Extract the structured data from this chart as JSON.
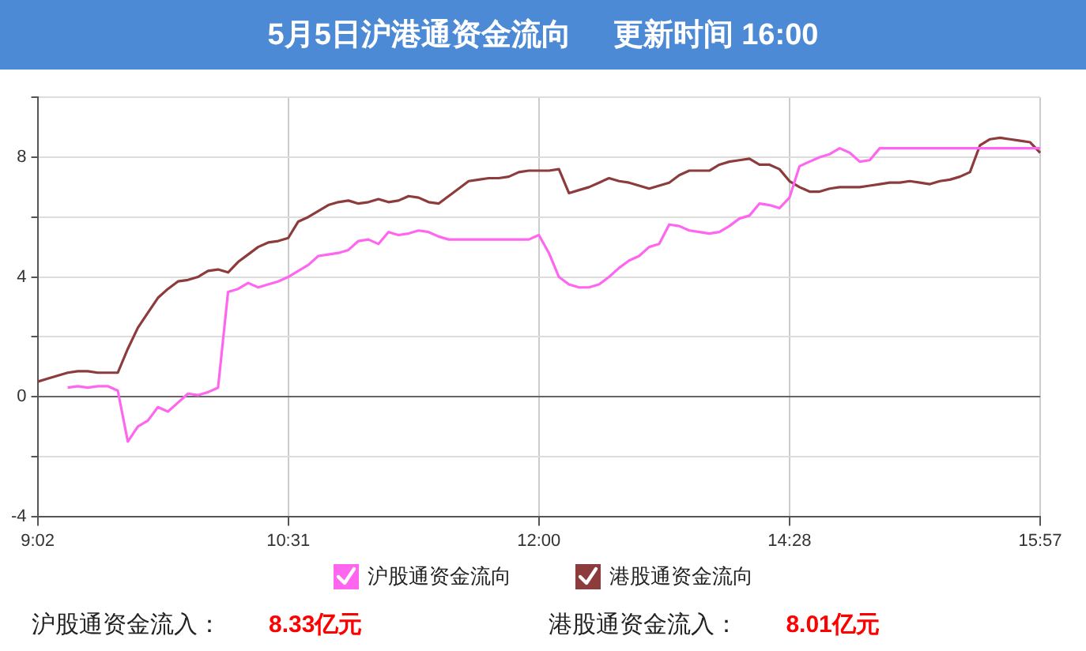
{
  "chart_data": {
    "type": "line",
    "title": "5月5日沪港通资金流向     更新时间 16:00",
    "categories": [
      "9:02",
      null,
      null,
      null,
      null,
      null,
      null,
      null,
      null,
      null,
      null,
      null,
      null,
      null,
      null,
      null,
      null,
      null,
      null,
      null,
      null,
      null,
      null,
      null,
      null,
      "10:31",
      null,
      null,
      null,
      null,
      null,
      null,
      null,
      null,
      null,
      null,
      null,
      null,
      null,
      null,
      null,
      null,
      null,
      null,
      null,
      null,
      null,
      null,
      null,
      null,
      "12:00",
      null,
      null,
      null,
      null,
      null,
      null,
      null,
      null,
      null,
      null,
      null,
      null,
      null,
      null,
      null,
      null,
      null,
      null,
      null,
      null,
      null,
      null,
      null,
      null,
      "14:28",
      null,
      null,
      null,
      null,
      null,
      null,
      null,
      null,
      null,
      null,
      null,
      null,
      null,
      null,
      null,
      null,
      null,
      null,
      null,
      null,
      null,
      null,
      null,
      null,
      "15:57"
    ],
    "series": [
      {
        "name": "沪股通资金流向",
        "color": "#ff66f0",
        "values": [
          null,
          null,
          null,
          0.3,
          0.35,
          0.3,
          0.35,
          0.35,
          0.2,
          -1.5,
          -1.0,
          -0.8,
          -0.35,
          -0.5,
          -0.2,
          0.1,
          0.05,
          0.15,
          0.3,
          3.5,
          3.6,
          3.8,
          3.65,
          3.75,
          3.85,
          4.0,
          4.2,
          4.4,
          4.7,
          4.75,
          4.8,
          4.9,
          5.2,
          5.25,
          5.1,
          5.5,
          5.4,
          5.45,
          5.55,
          5.5,
          5.35,
          5.25,
          5.25,
          5.25,
          5.25,
          5.25,
          5.25,
          5.25,
          5.25,
          5.25,
          5.4,
          4.8,
          4.0,
          3.75,
          3.65,
          3.65,
          3.75,
          4.0,
          4.3,
          4.55,
          4.7,
          5.0,
          5.1,
          5.75,
          5.7,
          5.55,
          5.5,
          5.45,
          5.5,
          5.7,
          5.95,
          6.05,
          6.45,
          6.4,
          6.3,
          6.65,
          7.7,
          7.85,
          8.0,
          8.1,
          8.3,
          8.15,
          7.85,
          7.9,
          8.3,
          8.3,
          8.3,
          8.3,
          8.3,
          8.3,
          8.3,
          8.3,
          8.3,
          8.3,
          8.3,
          8.3,
          8.3,
          8.3,
          8.3,
          8.3,
          8.3
        ]
      },
      {
        "name": "港股通资金流向",
        "color": "#8c3c3c",
        "values": [
          0.5,
          0.6,
          0.7,
          0.8,
          0.85,
          0.85,
          0.8,
          0.8,
          0.8,
          1.6,
          2.3,
          2.8,
          3.3,
          3.6,
          3.85,
          3.9,
          4.0,
          4.2,
          4.25,
          4.15,
          4.5,
          4.75,
          5.0,
          5.15,
          5.2,
          5.3,
          5.85,
          6.0,
          6.2,
          6.4,
          6.5,
          6.55,
          6.45,
          6.5,
          6.6,
          6.5,
          6.55,
          6.7,
          6.65,
          6.5,
          6.45,
          6.7,
          6.95,
          7.2,
          7.25,
          7.3,
          7.3,
          7.35,
          7.5,
          7.55,
          7.55,
          7.55,
          7.6,
          6.8,
          6.9,
          7.0,
          7.15,
          7.3,
          7.2,
          7.15,
          7.05,
          6.95,
          7.05,
          7.15,
          7.4,
          7.55,
          7.55,
          7.55,
          7.75,
          7.85,
          7.9,
          7.95,
          7.75,
          7.75,
          7.6,
          7.2,
          7.0,
          6.85,
          6.85,
          6.95,
          7.0,
          7.0,
          7.0,
          7.05,
          7.1,
          7.15,
          7.15,
          7.2,
          7.15,
          7.1,
          7.2,
          7.25,
          7.35,
          7.5,
          8.4,
          8.6,
          8.65,
          8.6,
          8.55,
          8.5,
          8.15
        ]
      }
    ],
    "ylim": [
      -4,
      10
    ],
    "yticks": [
      -4,
      {
        "value": -2,
        "label": null
      },
      0,
      {
        "value": 2,
        "label": null
      },
      4,
      {
        "value": 6,
        "label": null
      },
      8,
      {
        "value": 10,
        "label": null
      }
    ],
    "grid": true,
    "legend": "bottom",
    "marker": "none",
    "line_style": "solid",
    "annotations": [
      "沪股通资金流入：",
      "8.33亿元",
      "港股通资金流入：",
      "8.01亿元"
    ]
  }
}
